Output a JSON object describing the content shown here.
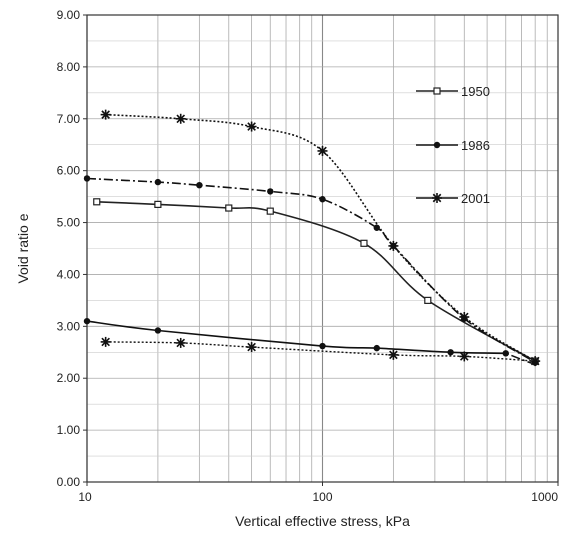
{
  "chart_data": {
    "type": "scatter",
    "xlabel": "Vertical effective stress, kPa",
    "ylabel": "Void ratio e",
    "x_scale": "log",
    "xlim": [
      10,
      1000
    ],
    "ylim": [
      0,
      9
    ],
    "grid": true,
    "legend_position": "right",
    "x_ticks": [
      {
        "value": 10,
        "label": "10"
      },
      {
        "value": 100,
        "label": "100"
      },
      {
        "value": 1000,
        "label": "1000"
      }
    ],
    "y_ticks": [
      {
        "value": 0,
        "label": "0.00"
      },
      {
        "value": 1,
        "label": "1.00"
      },
      {
        "value": 2,
        "label": "2.00"
      },
      {
        "value": 3,
        "label": "3.00"
      },
      {
        "value": 4,
        "label": "4.00"
      },
      {
        "value": 5,
        "label": "5.00"
      },
      {
        "value": 6,
        "label": "6.00"
      },
      {
        "value": 7,
        "label": "7.00"
      },
      {
        "value": 8,
        "label": "8.00"
      },
      {
        "value": 9,
        "label": "9.00"
      }
    ],
    "series": [
      {
        "name": "1950",
        "marker": "square",
        "color": "#222222",
        "points": [
          [
            11,
            5.4
          ],
          [
            20,
            5.35
          ],
          [
            40,
            5.28
          ],
          [
            60,
            5.22
          ],
          [
            150,
            4.6
          ],
          [
            280,
            3.5
          ],
          [
            800,
            2.33
          ]
        ]
      },
      {
        "name": "1986",
        "marker": "circle",
        "color": "#111111",
        "points": [
          [
            10,
            5.85
          ],
          [
            20,
            5.78
          ],
          [
            30,
            5.72
          ],
          [
            60,
            5.6
          ],
          [
            100,
            5.45
          ],
          [
            170,
            4.9
          ],
          [
            200,
            4.55
          ],
          [
            400,
            3.15
          ],
          [
            800,
            2.3
          ],
          [
            600,
            2.48
          ],
          [
            350,
            2.5
          ],
          [
            170,
            2.58
          ],
          [
            100,
            2.62
          ],
          [
            20,
            2.92
          ],
          [
            10,
            3.1
          ]
        ]
      },
      {
        "name": "2001",
        "marker": "asterisk",
        "color": "#111111",
        "points": [
          [
            12,
            7.08
          ],
          [
            25,
            7.0
          ],
          [
            50,
            6.85
          ],
          [
            100,
            6.38
          ],
          [
            200,
            4.55
          ],
          [
            400,
            3.18
          ],
          [
            800,
            2.33
          ],
          [
            400,
            2.42
          ],
          [
            200,
            2.45
          ],
          [
            50,
            2.6
          ],
          [
            25,
            2.68
          ],
          [
            12,
            2.7
          ]
        ]
      }
    ]
  }
}
